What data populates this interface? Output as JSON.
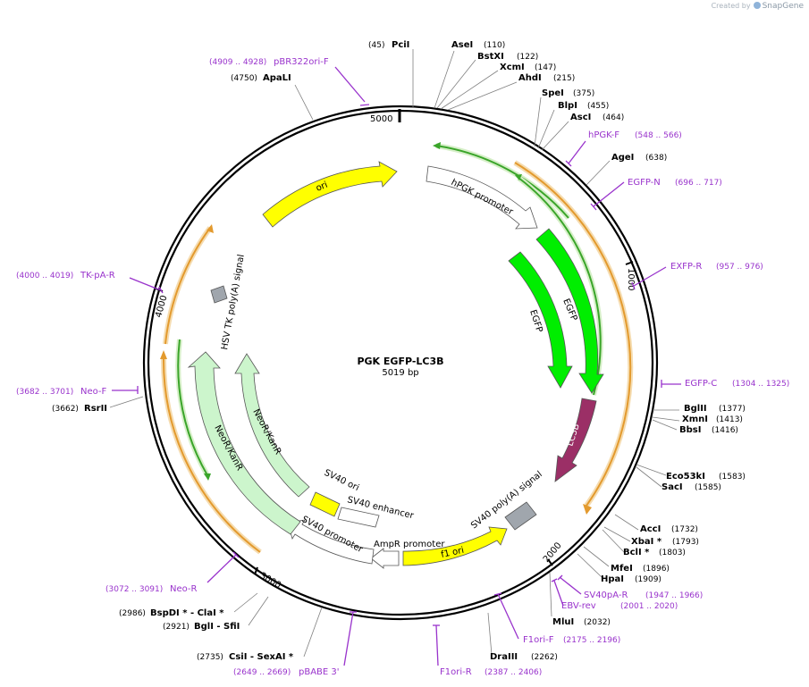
{
  "credit": {
    "text": "Created by",
    "brand": "SnapGene"
  },
  "plasmid": {
    "name": "PGK EGFP-LC3B",
    "size_label": "5019 bp"
  },
  "ticks": [
    {
      "bp": 5000,
      "label": "5000"
    },
    {
      "bp": 1000,
      "label": "1000"
    },
    {
      "bp": 2000,
      "label": "2000"
    },
    {
      "bp": 3000,
      "label": "3000"
    },
    {
      "bp": 4000,
      "label": "4000"
    }
  ],
  "sites": [
    {
      "name": "PciI",
      "pos": "(45)"
    },
    {
      "name": "AseI",
      "pos": "(110)"
    },
    {
      "name": "BstXI",
      "pos": "(122)"
    },
    {
      "name": "XcmI",
      "pos": "(147)"
    },
    {
      "name": "AhdI",
      "pos": "(215)"
    },
    {
      "name": "SpeI",
      "pos": "(375)"
    },
    {
      "name": "BlpI",
      "pos": "(455)"
    },
    {
      "name": "AscI",
      "pos": "(464)"
    },
    {
      "name": "AgeI",
      "pos": "(638)"
    },
    {
      "name": "BglII",
      "pos": "(1377)"
    },
    {
      "name": "XmnI",
      "pos": "(1413)"
    },
    {
      "name": "BbsI",
      "pos": "(1416)"
    },
    {
      "name": "Eco53kI",
      "pos": "(1583)"
    },
    {
      "name": "SacI",
      "pos": "(1585)"
    },
    {
      "name": "AccI",
      "pos": "(1732)"
    },
    {
      "name": "XbaI *",
      "pos": "(1793)"
    },
    {
      "name": "BclI *",
      "pos": "(1803)"
    },
    {
      "name": "MfeI",
      "pos": "(1896)"
    },
    {
      "name": "HpaI",
      "pos": "(1909)"
    },
    {
      "name": "MluI",
      "pos": "(2032)"
    },
    {
      "name": "DraIII",
      "pos": "(2262)"
    },
    {
      "name": "CsiI  -  SexAI *",
      "pos": "(2735)"
    },
    {
      "name": "BglI  -  SfiI",
      "pos": "(2921)"
    },
    {
      "name": "BspDI *  -  ClaI *",
      "pos": "(2986)"
    },
    {
      "name": "RsrII",
      "pos": "(3662)"
    },
    {
      "name": "ApaLI",
      "pos": "(4750)"
    }
  ],
  "primers": [
    {
      "name": "pBR322ori-F",
      "pos": "(4909 .. 4928)"
    },
    {
      "name": "hPGK-F",
      "pos": "(548 .. 566)"
    },
    {
      "name": "EGFP-N",
      "pos": "(696 .. 717)"
    },
    {
      "name": "EXFP-R",
      "pos": "(957 .. 976)"
    },
    {
      "name": "EGFP-C",
      "pos": "(1304 .. 1325)"
    },
    {
      "name": "SV40pA-R",
      "pos": "(1947 .. 1966)"
    },
    {
      "name": "EBV-rev",
      "pos": "(2001 .. 2020)"
    },
    {
      "name": "F1ori-F",
      "pos": "(2175 .. 2196)"
    },
    {
      "name": "F1ori-R",
      "pos": "(2387 .. 2406)"
    },
    {
      "name": "pBABE 3'",
      "pos": "(2649 .. 2669)"
    },
    {
      "name": "Neo-R",
      "pos": "(3072 .. 3091)"
    },
    {
      "name": "Neo-F",
      "pos": "(3682 .. 3701)"
    },
    {
      "name": "TK-pA-R",
      "pos": "(4000 .. 4019)"
    }
  ],
  "features": [
    {
      "name": "ori",
      "color": "#ffff00"
    },
    {
      "name": "hPGK promoter",
      "color": "#ffffff"
    },
    {
      "name": "EGFP",
      "color": "#00ee00"
    },
    {
      "name": "EGFP",
      "color": "#00ee00"
    },
    {
      "name": "LC3B",
      "color": "#9b2f66"
    },
    {
      "name": "SV40 poly(A) signal",
      "color": "#a0a6ad"
    },
    {
      "name": "f1 ori",
      "color": "#ffff00"
    },
    {
      "name": "AmpR promoter",
      "color": "#ffffff"
    },
    {
      "name": "SV40 promoter",
      "color": "#ffffff"
    },
    {
      "name": "SV40 enhancer",
      "color": "#ffffff"
    },
    {
      "name": "SV40 ori",
      "color": "#ffff00"
    },
    {
      "name": "NeoR/KanR",
      "color": "#ccf5cc"
    },
    {
      "name": "NeoR/KanR",
      "color": "#ccf5cc"
    },
    {
      "name": "HSV TK poly(A) signal",
      "color": "#a0a6ad"
    }
  ],
  "colors": {
    "backbone": "#000000",
    "primer": "#9933cc",
    "orf_orange": "#e8a53c",
    "orf_green": "#3aa52a"
  }
}
